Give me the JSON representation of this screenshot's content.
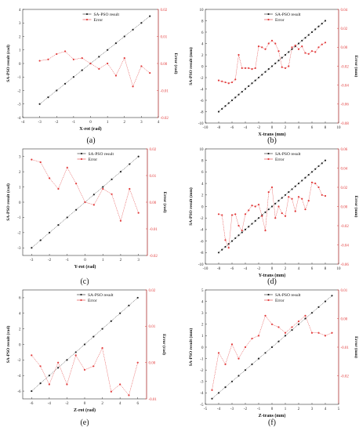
{
  "chart_data": [
    {
      "type": "line",
      "panel": "(a)",
      "xlabel": "X-rot (rad)",
      "ylabel": "SA-PSO result (rad)",
      "y2label": "Error (rad)",
      "xlim": [
        -4,
        4
      ],
      "xticks": [
        "-4",
        "-3",
        "-2",
        "-1",
        "0",
        "1",
        "2",
        "3",
        "4"
      ],
      "ylim": [
        -4,
        4
      ],
      "yticks": [
        "-4",
        "-3",
        "-2",
        "-1",
        "0",
        "1",
        "2",
        "3",
        "4"
      ],
      "y2lim": [
        -0.02,
        0.02
      ],
      "y2ticks": [
        "-0.02",
        "-0.01",
        "0.00",
        "0.01",
        "0.02"
      ],
      "legend": [
        "SA-PSO result",
        "Error"
      ],
      "series": [
        {
          "name": "SA-PSO result",
          "axis": "left",
          "x": [
            -3,
            -2.5,
            -2,
            -1.5,
            -1,
            -0.5,
            0,
            0.5,
            1,
            1.5,
            2,
            2.5,
            3,
            3.5
          ],
          "y": [
            -3,
            -2.5,
            -2,
            -1.5,
            -1,
            -0.5,
            0,
            0.5,
            1,
            1.5,
            2,
            2.5,
            3,
            3.5
          ]
        },
        {
          "name": "Error",
          "axis": "right",
          "x": [
            -3,
            -2.5,
            -2,
            -1.5,
            -1,
            -0.5,
            0,
            0.5,
            1,
            1.5,
            2,
            2.5,
            3,
            3.5
          ],
          "y": [
            0.001,
            0.0015,
            0.0035,
            0.0045,
            0.0015,
            0.002,
            0.0,
            -0.002,
            0.0,
            -0.0045,
            0.002,
            -0.0085,
            -0.001,
            -0.0035
          ]
        }
      ]
    },
    {
      "type": "line",
      "panel": "(b)",
      "xlabel": "X-trans (mm)",
      "ylabel": "SA-PSO result (mm)",
      "y2label": "Error (mm)",
      "xlim": [
        -10,
        10
      ],
      "xticks": [
        "-10",
        "-8",
        "-6",
        "-4",
        "-2",
        "0",
        "2",
        "4",
        "6",
        "8",
        "10"
      ],
      "ylim": [
        -10,
        10
      ],
      "yticks": [
        "-10",
        "-8",
        "-6",
        "-4",
        "-2",
        "0",
        "2",
        "4",
        "6",
        "8",
        "10"
      ],
      "y2lim": [
        -0.08,
        0.04
      ],
      "y2ticks": [
        "-0.08",
        "-0.06",
        "-0.04",
        "-0.02",
        "0.00",
        "0.02",
        "0.04"
      ],
      "legend": [
        "SA-PSO result",
        "Error"
      ],
      "series": [
        {
          "name": "SA-PSO result",
          "axis": "left",
          "x": [
            -8,
            -7.5,
            -7,
            -6.5,
            -6,
            -5.5,
            -5,
            -4.5,
            -4,
            -3.5,
            -3,
            -2.5,
            -2,
            -1.5,
            -1,
            -0.5,
            0,
            0.5,
            1,
            1.5,
            2,
            2.5,
            3,
            3.5,
            4,
            4.5,
            5,
            5.5,
            6,
            6.5,
            7,
            7.5,
            8
          ],
          "y": [
            -8,
            -7.5,
            -7,
            -6.5,
            -6,
            -5.5,
            -5,
            -4.5,
            -4,
            -3.5,
            -3,
            -2.5,
            -2,
            -1.5,
            -1,
            -0.5,
            0,
            0.5,
            1,
            1.5,
            2,
            2.5,
            3,
            3.5,
            4,
            4.5,
            5,
            5.5,
            6,
            6.5,
            7,
            7.5,
            8
          ]
        },
        {
          "name": "Error",
          "axis": "right",
          "x": [
            -8,
            -7.5,
            -7,
            -6.5,
            -6,
            -5.5,
            -5,
            -4.5,
            -4,
            -3.5,
            -3,
            -2.5,
            -2,
            -1.5,
            -1,
            -0.5,
            0,
            0.5,
            1,
            1.5,
            2,
            2.5,
            3,
            3.5,
            4,
            4.5,
            5,
            5.5,
            6,
            6.5,
            7,
            7.5,
            8
          ],
          "y": [
            -0.035,
            -0.036,
            -0.037,
            -0.038,
            -0.037,
            -0.034,
            -0.008,
            -0.022,
            -0.022,
            -0.022,
            -0.023,
            -0.022,
            0.001,
            0.0,
            -0.002,
            0.004,
            0.007,
            0.004,
            -0.004,
            -0.021,
            -0.022,
            -0.02,
            0.0,
            0.002,
            -0.002,
            0.001,
            -0.006,
            -0.007,
            -0.004,
            -0.005,
            0.0,
            0.003,
            0.005
          ]
        }
      ]
    },
    {
      "type": "line",
      "panel": "(c)",
      "xlabel": "Y-rot (rad)",
      "ylabel": "SA-PSO result (rad)",
      "y2label": "Error (rad)",
      "xlim": [
        -3.5,
        3.5
      ],
      "xticks": [
        "-3",
        "-2",
        "-1",
        "0",
        "1",
        "2",
        "3"
      ],
      "ylim": [
        -3.5,
        3.5
      ],
      "yticks": [
        "-3",
        "-2",
        "-1",
        "0",
        "1",
        "2",
        "3"
      ],
      "y2lim": [
        -0.02,
        0.02
      ],
      "y2ticks": [
        "-0.02",
        "-0.01",
        "0.00",
        "0.01",
        "0.02"
      ],
      "legend": [
        "SA-PSO result",
        "Error"
      ],
      "series": [
        {
          "name": "SA-PSO result",
          "axis": "left",
          "x": [
            -3,
            -2.5,
            -2,
            -1.5,
            -1,
            -0.5,
            0,
            0.5,
            1,
            1.5,
            2,
            2.5,
            3
          ],
          "y": [
            -3,
            -2.5,
            -2,
            -1.5,
            -1,
            -0.5,
            0,
            0.5,
            1,
            1.5,
            2,
            2.5,
            3
          ]
        },
        {
          "name": "Error",
          "axis": "right",
          "x": [
            -3,
            -2.5,
            -2,
            -1.5,
            -1,
            -0.5,
            0,
            0.5,
            1,
            1.5,
            2,
            2.5,
            3
          ],
          "y": [
            0.016,
            0.015,
            0.009,
            0.005,
            0.013,
            0.007,
            0.0,
            -0.001,
            0.005,
            0.003,
            -0.007,
            0.005,
            -0.004
          ]
        }
      ]
    },
    {
      "type": "line",
      "panel": "(d)",
      "xlabel": "Y-trans (mm)",
      "ylabel": "SA-PSO result (mm)",
      "y2label": "Error (mm)",
      "xlim": [
        -10,
        10
      ],
      "xticks": [
        "-10",
        "-8",
        "-6",
        "-4",
        "-2",
        "0",
        "2",
        "4",
        "6",
        "8",
        "10"
      ],
      "ylim": [
        -10,
        10
      ],
      "yticks": [
        "-10",
        "-8",
        "-6",
        "-4",
        "-2",
        "0",
        "2",
        "4",
        "6",
        "8",
        "10"
      ],
      "y2lim": [
        -0.06,
        0.06
      ],
      "y2ticks": [
        "-0.06",
        "-0.04",
        "-0.02",
        "0.00",
        "0.02",
        "0.04",
        "0.06"
      ],
      "legend": [
        "SA-PSO result",
        "Error"
      ],
      "series": [
        {
          "name": "SA-PSO result",
          "axis": "left",
          "x": [
            -8,
            -7.5,
            -7,
            -6.5,
            -6,
            -5.5,
            -5,
            -4.5,
            -4,
            -3.5,
            -3,
            -2.5,
            -2,
            -1.5,
            -1,
            -0.5,
            0,
            0.5,
            1,
            1.5,
            2,
            2.5,
            3,
            3.5,
            4,
            4.5,
            5,
            5.5,
            6,
            6.5,
            7,
            7.5,
            8
          ],
          "y": [
            -8,
            -7.5,
            -7,
            -6.5,
            -6,
            -5.5,
            -5,
            -4.5,
            -4,
            -3.5,
            -3,
            -2.5,
            -2,
            -1.5,
            -1,
            -0.5,
            0,
            0.5,
            1,
            1.5,
            2,
            2.5,
            3,
            3.5,
            4,
            4.5,
            5,
            5.5,
            6,
            6.5,
            7,
            7.5,
            8
          ]
        },
        {
          "name": "Error",
          "axis": "right",
          "x": [
            -8,
            -7.5,
            -7,
            -6.5,
            -6,
            -5.5,
            -5,
            -4.5,
            -4,
            -3.5,
            -3,
            -2.5,
            -2,
            -1.5,
            -1,
            -0.5,
            0,
            0.5,
            1,
            1.5,
            2,
            2.5,
            3,
            3.5,
            4,
            4.5,
            5,
            5.5,
            6,
            6.5,
            7,
            7.5,
            8
          ],
          "y": [
            -0.008,
            -0.009,
            -0.035,
            -0.043,
            -0.009,
            -0.008,
            -0.02,
            -0.025,
            -0.008,
            -0.004,
            0.001,
            0.0,
            0.002,
            -0.01,
            -0.025,
            0.015,
            0.02,
            -0.012,
            0.0,
            -0.007,
            -0.01,
            0.01,
            0.008,
            -0.005,
            0.01,
            0.008,
            -0.003,
            0.006,
            0.025,
            0.024,
            0.02,
            0.012,
            0.011
          ]
        }
      ]
    },
    {
      "type": "line",
      "panel": "(e)",
      "xlabel": "Z-rot (rad)",
      "ylabel": "SA-PSO result (rad)",
      "y2label": "Error (rad)",
      "xlim": [
        -7,
        7
      ],
      "xticks": [
        "-6",
        "-4",
        "-2",
        "0",
        "2",
        "4",
        "6"
      ],
      "ylim": [
        -7,
        7
      ],
      "yticks": [
        "-6",
        "-4",
        "-2",
        "0",
        "2",
        "4",
        "6"
      ],
      "y2lim": [
        -0.01,
        0.02
      ],
      "y2ticks": [
        "-0.01",
        "0.00",
        "0.01",
        "0.02"
      ],
      "legend": [
        "SA-PSO result",
        "Error"
      ],
      "series": [
        {
          "name": "SA-PSO result",
          "axis": "left",
          "x": [
            -6,
            -5,
            -4,
            -3,
            -2,
            -1,
            0,
            1,
            2,
            3,
            4,
            5,
            6
          ],
          "y": [
            -6,
            -5,
            -4,
            -3,
            -2,
            -1,
            0,
            1,
            2,
            3,
            4,
            5,
            6
          ]
        },
        {
          "name": "Error",
          "axis": "right",
          "x": [
            -6,
            -5,
            -4,
            -3,
            -2,
            -1,
            0,
            1,
            2,
            3,
            4,
            5,
            6
          ],
          "y": [
            0.002,
            -0.001,
            -0.006,
            0.0,
            -0.006,
            0.002,
            -0.002,
            -0.001,
            0.004,
            -0.008,
            -0.006,
            -0.009,
            0.0
          ]
        }
      ]
    },
    {
      "type": "line",
      "panel": "(f)",
      "xlabel": "Z-trans (mm)",
      "ylabel": "SA-PSO result (mm)",
      "y2label": "Error (mm)",
      "xlim": [
        -5,
        5
      ],
      "xticks": [
        "-5",
        "-4",
        "-3",
        "-2",
        "-1",
        "0",
        "1",
        "2",
        "3",
        "4",
        "5"
      ],
      "ylim": [
        -5,
        5
      ],
      "yticks": [
        "-5",
        "-4",
        "-3",
        "-2",
        "-1",
        "0",
        "1",
        "2",
        "3",
        "4",
        "5"
      ],
      "y2lim": [
        -0.03,
        0.01
      ],
      "y2ticks": [
        "-0.02",
        "-0.01",
        "0.00",
        "0.01"
      ],
      "legend": [
        "SA-PSO result",
        "Error"
      ],
      "series": [
        {
          "name": "SA-PSO result",
          "axis": "left",
          "x": [
            -4.5,
            -4,
            -3.5,
            -3,
            -2.5,
            -2,
            -1.5,
            -1,
            -0.5,
            0,
            0.5,
            1,
            1.5,
            2,
            2.5,
            3,
            3.5,
            4,
            4.5
          ],
          "y": [
            -4.5,
            -4,
            -3.5,
            -3,
            -2.5,
            -2,
            -1.5,
            -1,
            -0.5,
            0,
            0.5,
            1,
            1.5,
            2,
            2.5,
            3,
            3.5,
            4,
            4.5
          ]
        },
        {
          "name": "Error",
          "axis": "right",
          "x": [
            -4.5,
            -4,
            -3.5,
            -3,
            -2.5,
            -2,
            -1.5,
            -1,
            -0.5,
            0,
            0.5,
            1,
            1.5,
            2,
            2.5,
            3,
            3.5,
            4,
            4.5
          ],
          "y": [
            -0.025,
            -0.012,
            -0.016,
            -0.009,
            -0.014,
            -0.01,
            -0.007,
            -0.006,
            0.001,
            -0.002,
            -0.003,
            -0.005,
            -0.003,
            -0.001,
            0.001,
            -0.005,
            -0.005,
            -0.006,
            -0.005
          ]
        }
      ]
    }
  ]
}
